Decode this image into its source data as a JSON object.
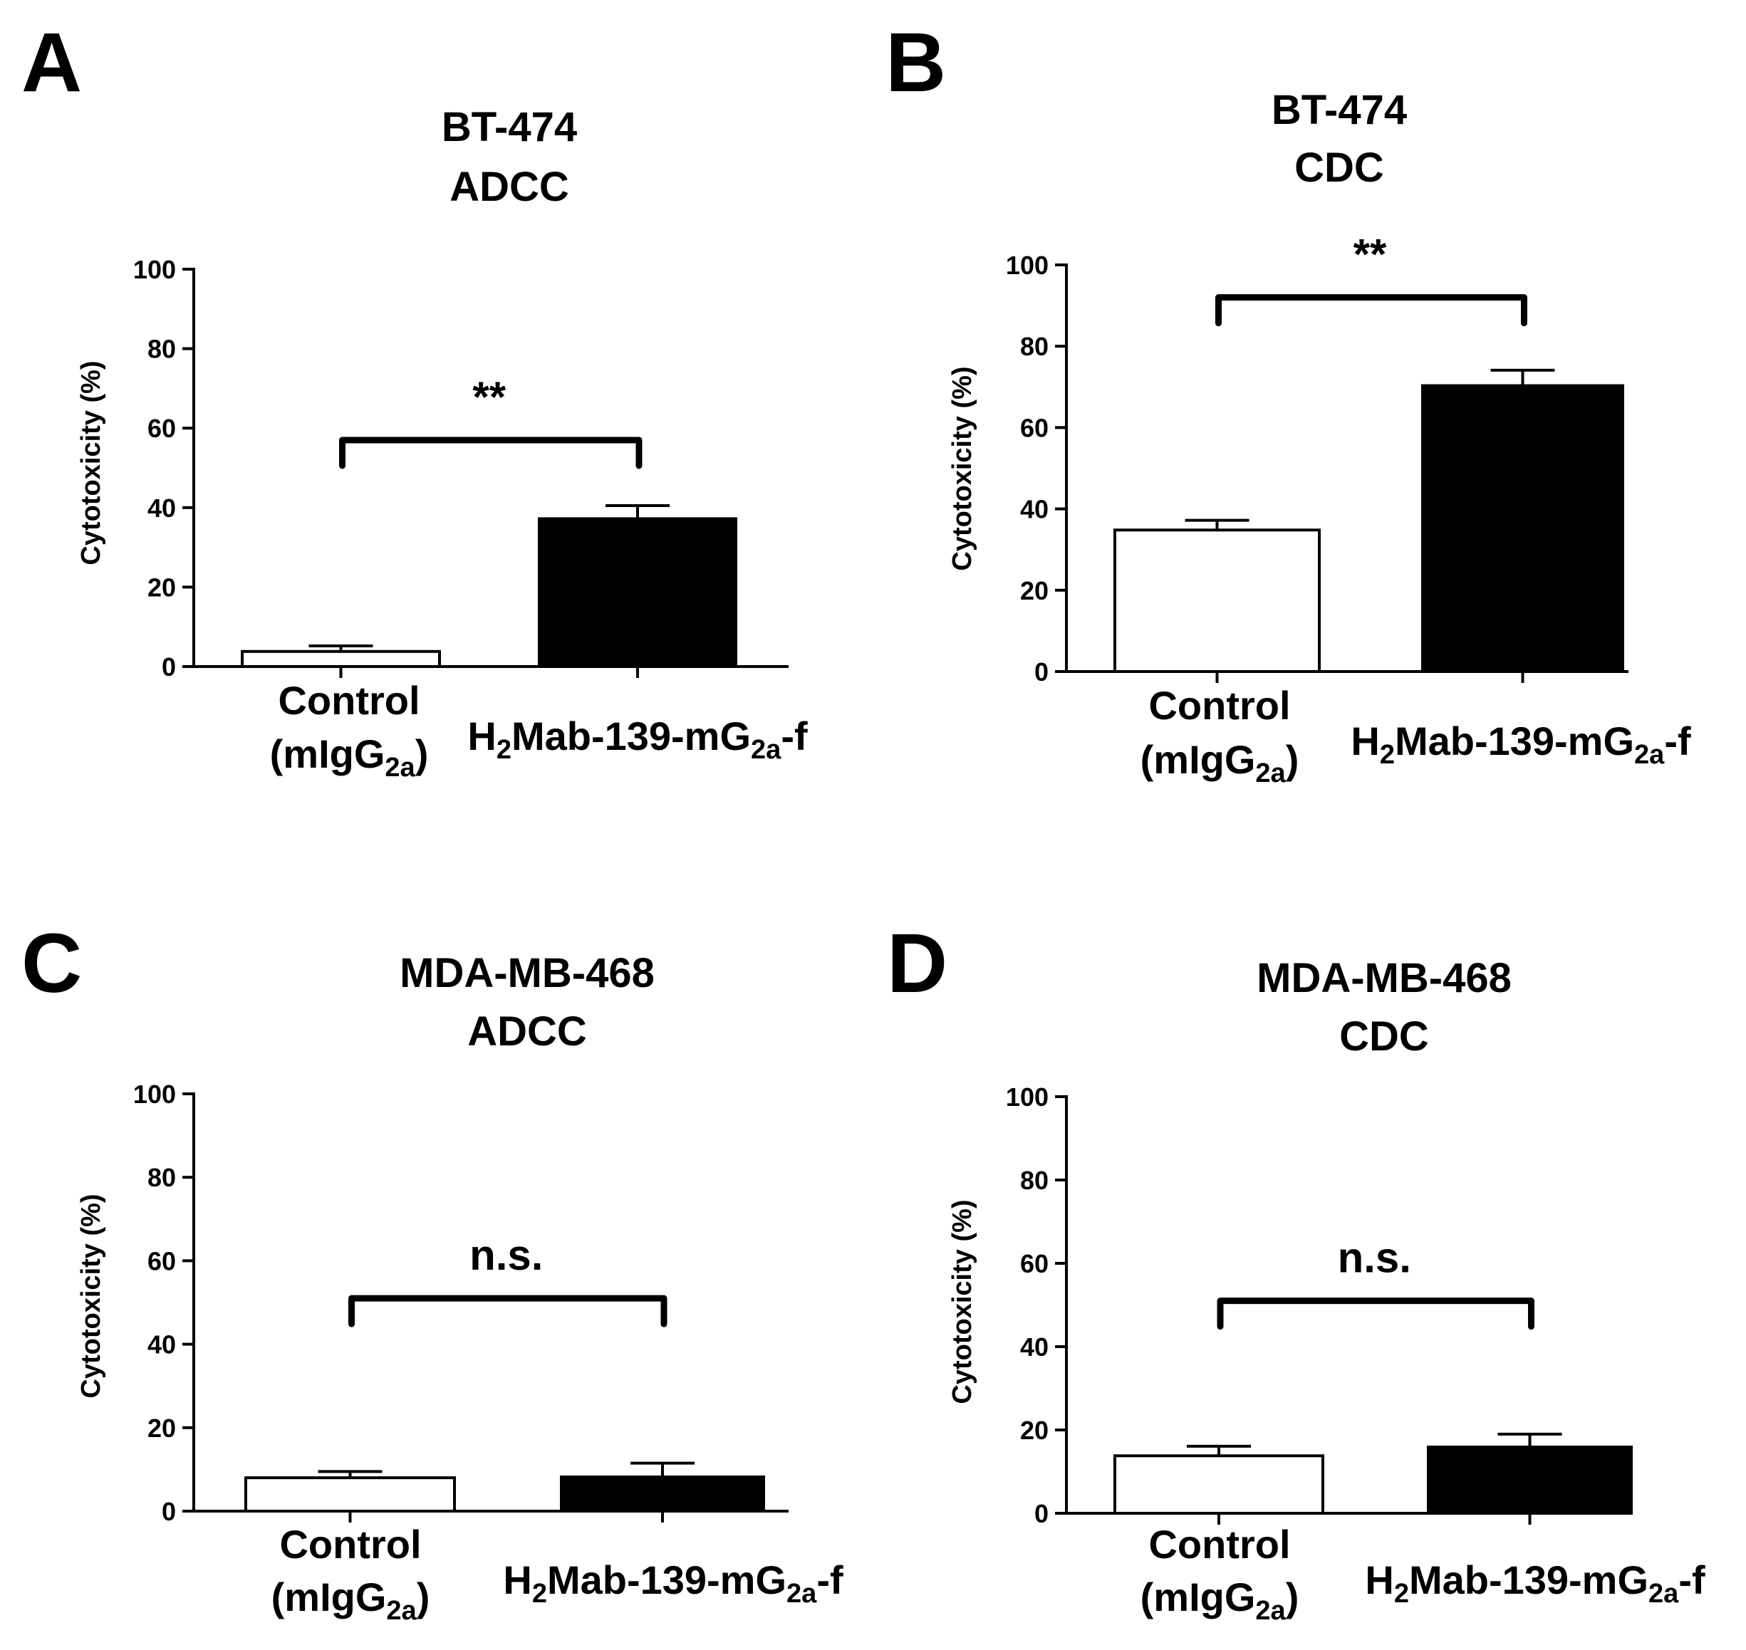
{
  "figure": {
    "panels_order": [
      "A",
      "B",
      "C",
      "D"
    ]
  },
  "chart_data": [
    {
      "panel_label": "A",
      "type": "bar",
      "title_line1": "BT-474",
      "title_line2": "ADCC",
      "ylabel": "Cytotoxicity (%)",
      "ylim": [
        0,
        100
      ],
      "yticks": [
        0,
        20,
        40,
        60,
        80,
        100
      ],
      "categories": [
        {
          "main": "Control",
          "paren_open": "(mIgG",
          "paren_sub": "2a",
          "paren_close": ")"
        },
        {
          "main": "H",
          "sub1": "2",
          "mid": "Mab-139-mG",
          "sub2": "2a",
          "tail": "-f"
        }
      ],
      "series": [
        {
          "name": "Cytotoxicity",
          "values": [
            3.8,
            37.2
          ],
          "errors": [
            1.4,
            3.3
          ],
          "fills": [
            "#ffffff",
            "#000000"
          ]
        }
      ],
      "annotation": "**",
      "bracket_y": 57
    },
    {
      "panel_label": "B",
      "type": "bar",
      "title_line1": "BT-474",
      "title_line2": "CDC",
      "ylabel": "Cytotoxicity (%)",
      "ylim": [
        0,
        100
      ],
      "yticks": [
        0,
        20,
        40,
        60,
        80,
        100
      ],
      "categories": [
        {
          "main": "Control",
          "paren_open": "(mIgG",
          "paren_sub": "2a",
          "paren_close": ")"
        },
        {
          "main": "H",
          "sub1": "2",
          "mid": "Mab-139-mG",
          "sub2": "2a",
          "tail": "-f"
        }
      ],
      "series": [
        {
          "name": "Cytotoxicity",
          "values": [
            34.8,
            70.3
          ],
          "errors": [
            2.4,
            3.8
          ],
          "fills": [
            "#ffffff",
            "#000000"
          ]
        }
      ],
      "annotation": "**",
      "bracket_y": 92
    },
    {
      "panel_label": "C",
      "type": "bar",
      "title_line1": "MDA-MB-468",
      "title_line2": "ADCC",
      "ylabel": "Cytotoxicity (%)",
      "ylim": [
        0,
        100
      ],
      "yticks": [
        0,
        20,
        40,
        60,
        80,
        100
      ],
      "categories": [
        {
          "main": "Control",
          "paren_open": "(mIgG",
          "paren_sub": "2a",
          "paren_close": ")"
        },
        {
          "main": "H",
          "sub1": "2",
          "mid": "Mab-139-mG",
          "sub2": "2a",
          "tail": "-f"
        }
      ],
      "series": [
        {
          "name": "Cytotoxicity",
          "values": [
            8.0,
            8.2
          ],
          "errors": [
            1.5,
            3.3
          ],
          "fills": [
            "#ffffff",
            "#000000"
          ]
        }
      ],
      "annotation": "n.s.",
      "bracket_y": 51
    },
    {
      "panel_label": "D",
      "type": "bar",
      "title_line1": "MDA-MB-468",
      "title_line2": "CDC",
      "ylabel": "Cytotoxicity (%)",
      "ylim": [
        0,
        100
      ],
      "yticks": [
        0,
        20,
        40,
        60,
        80,
        100
      ],
      "categories": [
        {
          "main": "Control",
          "paren_open": "(mIgG",
          "paren_sub": "2a",
          "paren_close": ")"
        },
        {
          "main": "H",
          "sub1": "2",
          "mid": "Mab-139-mG",
          "sub2": "2a",
          "tail": "-f"
        }
      ],
      "series": [
        {
          "name": "Cytotoxicity",
          "values": [
            13.8,
            15.9
          ],
          "errors": [
            2.3,
            3.1
          ],
          "fills": [
            "#ffffff",
            "#000000"
          ]
        }
      ],
      "annotation": "n.s.",
      "bracket_y": 51
    }
  ]
}
